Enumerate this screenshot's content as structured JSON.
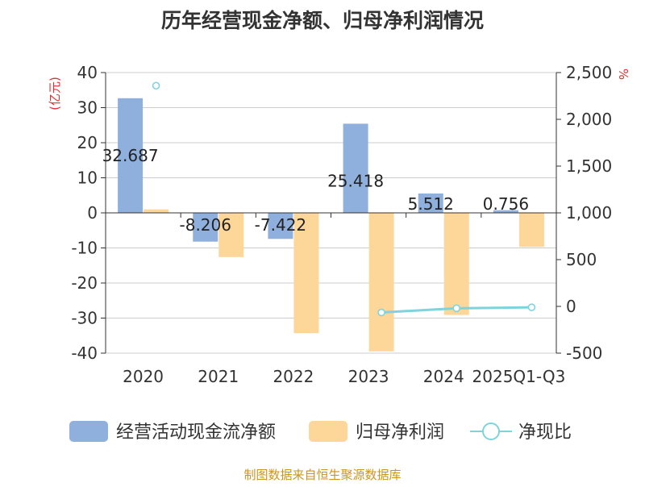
{
  "chart_data": {
    "type": "bar",
    "title": "历年经营现金净额、归母净利润情况",
    "categories": [
      "2020",
      "2021",
      "2022",
      "2023",
      "2024",
      "2025Q1-Q3"
    ],
    "y_left_unit": "(亿元)",
    "y_right_unit": "%",
    "y_left_range": [
      -40,
      40
    ],
    "y_left_ticks": [
      40,
      30,
      20,
      10,
      0,
      -10,
      -20,
      -30,
      -40
    ],
    "y_left_tick_labels": [
      "40",
      "30",
      "20",
      "10",
      "0",
      "-10",
      "-20",
      "-30",
      "-40"
    ],
    "y_right_range": [
      -500,
      2500
    ],
    "y_right_ticks": [
      2500,
      2000,
      1500,
      1000,
      500,
      0,
      -500
    ],
    "y_right_tick_labels": [
      "2,500",
      "2,000",
      "1,500",
      "1,000",
      "500",
      "0",
      "-500"
    ],
    "series": [
      {
        "name": "经营活动现金流净额",
        "axis": "left",
        "kind": "bar",
        "color": "#8fafdc",
        "values": [
          32.687,
          -8.206,
          -7.422,
          25.418,
          5.512,
          0.756
        ],
        "labels": [
          "32.687",
          "-8.206",
          "-7.422",
          "25.418",
          "5.512",
          "0.756"
        ]
      },
      {
        "name": "归母净利润",
        "axis": "left",
        "kind": "bar",
        "color": "#fdd699",
        "values": [
          1.0,
          -12.6,
          -34.3,
          -39.5,
          -29.1,
          -9.7
        ]
      },
      {
        "name": "净现比",
        "axis": "right",
        "kind": "line",
        "color": "#7fd3dc",
        "values": [
          2360,
          null,
          null,
          -65,
          -20,
          -10
        ]
      }
    ],
    "legend": [
      {
        "name": "经营活动现金流净额",
        "kind": "bar",
        "color": "#8fafdc"
      },
      {
        "name": "归母净利润",
        "kind": "bar",
        "color": "#fdd699"
      },
      {
        "name": "净现比",
        "kind": "line",
        "color": "#7fd3dc"
      }
    ],
    "source": "制图数据来自恒生聚源数据库",
    "colors": {
      "title": "#333333",
      "axis_text": "#333333",
      "unit_red": "#e03030",
      "source": "#c8961e",
      "grid": "#cccccc"
    }
  }
}
